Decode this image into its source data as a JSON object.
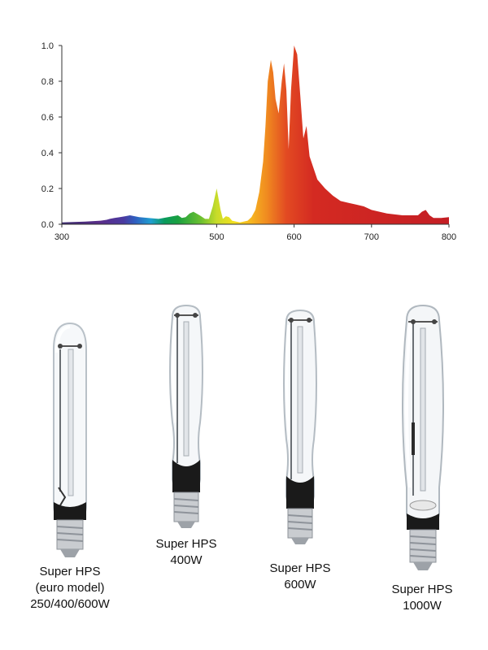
{
  "chart_data": {
    "type": "area",
    "title": "",
    "xlabel": "",
    "ylabel": "",
    "xlim": [
      300,
      800
    ],
    "ylim": [
      0,
      1.0
    ],
    "x_ticks": [
      "300",
      "500",
      "600",
      "700",
      "800"
    ],
    "y_ticks": [
      "0.0",
      "0.2",
      "0.4",
      "0.6",
      "0.8",
      "1.0"
    ],
    "grid": false,
    "legend": "none",
    "fill": "wavelength spectrum gradient",
    "series": [
      {
        "x": [
          300,
          330,
          350,
          358,
          362,
          368,
          375,
          382,
          388,
          400,
          425,
          450,
          455,
          460,
          465,
          470,
          478,
          485,
          490,
          495,
          500,
          505,
          508,
          512,
          516,
          520,
          530,
          540,
          545,
          550,
          555,
          560,
          563,
          566,
          570,
          573,
          576,
          580,
          584,
          587,
          590,
          593,
          596,
          600,
          604,
          608,
          612,
          616,
          620,
          630,
          640,
          650,
          660,
          670,
          680,
          690,
          700,
          720,
          740,
          760,
          765,
          770,
          775,
          780,
          790,
          800
        ],
        "y": [
          0.01,
          0.015,
          0.02,
          0.025,
          0.03,
          0.035,
          0.04,
          0.045,
          0.05,
          0.04,
          0.03,
          0.05,
          0.035,
          0.04,
          0.06,
          0.07,
          0.05,
          0.03,
          0.03,
          0.1,
          0.2,
          0.08,
          0.03,
          0.045,
          0.04,
          0.02,
          0.01,
          0.02,
          0.04,
          0.08,
          0.18,
          0.35,
          0.55,
          0.8,
          0.92,
          0.85,
          0.7,
          0.62,
          0.8,
          0.9,
          0.75,
          0.42,
          0.75,
          1.0,
          0.95,
          0.72,
          0.48,
          0.55,
          0.38,
          0.25,
          0.2,
          0.16,
          0.13,
          0.12,
          0.11,
          0.1,
          0.08,
          0.06,
          0.05,
          0.05,
          0.07,
          0.08,
          0.05,
          0.035,
          0.035,
          0.04
        ]
      }
    ]
  },
  "bulbs": [
    {
      "icon": "hps-bulb-euro-icon",
      "caption": [
        "Super HPS",
        "(euro model)",
        "250/400/600W"
      ]
    },
    {
      "icon": "hps-bulb-400w-icon",
      "caption": [
        "Super HPS",
        "400W"
      ]
    },
    {
      "icon": "hps-bulb-600w-icon",
      "caption": [
        "Super HPS",
        "600W"
      ]
    },
    {
      "icon": "hps-bulb-1000w-icon",
      "caption": [
        "Super HPS",
        "1000W"
      ]
    }
  ]
}
